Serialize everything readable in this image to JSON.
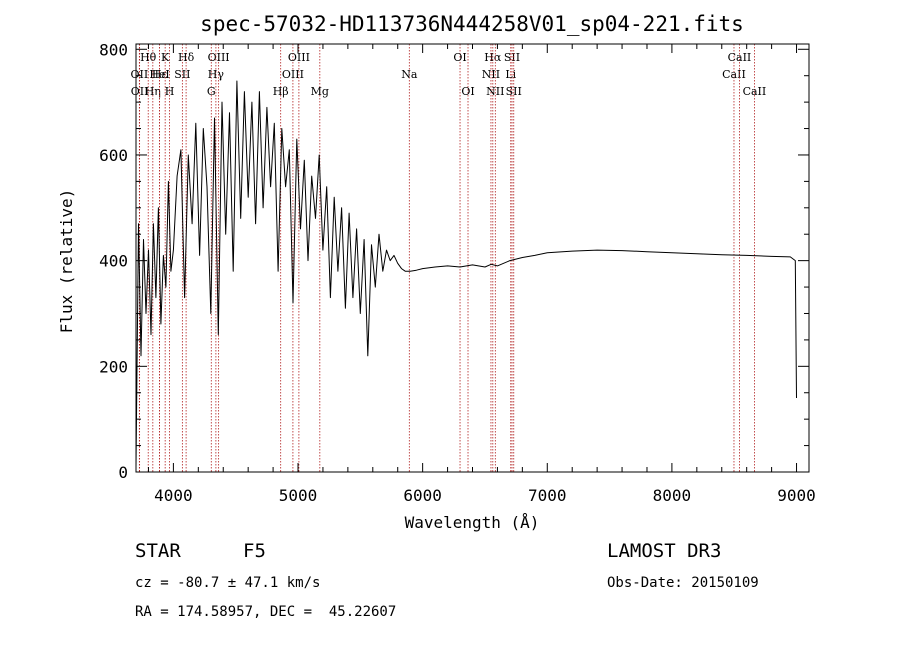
{
  "chart_data": {
    "type": "line",
    "title": "spec-57032-HD113736N444258V01_sp04-221.fits",
    "xlabel": "Wavelength (Å)",
    "ylabel": "Flux (relative)",
    "xlim": [
      3700,
      9100
    ],
    "ylim": [
      0,
      810
    ],
    "xticks": [
      4000,
      5000,
      6000,
      7000,
      8000,
      9000
    ],
    "yticks": [
      0,
      200,
      400,
      600,
      800
    ],
    "series": [
      {
        "name": "flux",
        "x": [
          3700,
          3720,
          3740,
          3760,
          3780,
          3800,
          3820,
          3840,
          3860,
          3880,
          3900,
          3920,
          3940,
          3960,
          3980,
          4000,
          4030,
          4060,
          4090,
          4120,
          4150,
          4180,
          4210,
          4240,
          4270,
          4300,
          4330,
          4360,
          4390,
          4420,
          4450,
          4480,
          4510,
          4540,
          4570,
          4600,
          4630,
          4660,
          4690,
          4720,
          4750,
          4780,
          4810,
          4840,
          4870,
          4900,
          4930,
          4960,
          4990,
          5020,
          5050,
          5080,
          5110,
          5140,
          5170,
          5200,
          5230,
          5260,
          5290,
          5320,
          5350,
          5380,
          5410,
          5440,
          5470,
          5500,
          5530,
          5560,
          5590,
          5620,
          5650,
          5680,
          5710,
          5740,
          5770,
          5800,
          5830,
          5860,
          5900,
          5950,
          6000,
          6100,
          6200,
          6300,
          6400,
          6500,
          6550,
          6600,
          6700,
          6800,
          6900,
          7000,
          7200,
          7400,
          7600,
          7800,
          8000,
          8200,
          8400,
          8600,
          8800,
          8950,
          8990,
          9000
        ],
        "y": [
          10,
          470,
          220,
          440,
          300,
          420,
          260,
          470,
          330,
          500,
          280,
          410,
          350,
          550,
          380,
          420,
          560,
          610,
          330,
          600,
          470,
          660,
          410,
          650,
          540,
          300,
          670,
          260,
          700,
          450,
          680,
          380,
          740,
          480,
          720,
          520,
          700,
          470,
          720,
          500,
          690,
          540,
          660,
          380,
          650,
          540,
          610,
          320,
          630,
          460,
          590,
          400,
          560,
          480,
          600,
          420,
          540,
          330,
          520,
          380,
          500,
          310,
          490,
          330,
          460,
          300,
          440,
          220,
          430,
          350,
          450,
          380,
          420,
          400,
          410,
          395,
          385,
          380,
          380,
          382,
          385,
          388,
          390,
          388,
          392,
          388,
          393,
          390,
          400,
          406,
          410,
          415,
          418,
          420,
          419,
          417,
          415,
          413,
          411,
          410,
          408,
          407,
          400,
          140
        ]
      }
    ],
    "lines": [
      {
        "label": "Hθ",
        "wl": 3798,
        "row": 0
      },
      {
        "label": "OII",
        "wl": 3727,
        "row": 1
      },
      {
        "label": "OII",
        "wl": 3729,
        "row": 2
      },
      {
        "label": "Hη",
        "wl": 3835,
        "row": 2
      },
      {
        "label": "Hε",
        "wl": 3889,
        "row": 1
      },
      {
        "label": "K",
        "wl": 3934,
        "row": 0
      },
      {
        "label": "H",
        "wl": 3969,
        "row": 2
      },
      {
        "label": "HeI",
        "wl": 3889,
        "row": 1
      },
      {
        "label": "SII",
        "wl": 4072,
        "row": 1
      },
      {
        "label": "Hδ",
        "wl": 4102,
        "row": 0
      },
      {
        "label": "OIII",
        "wl": 4363,
        "row": 0
      },
      {
        "label": "Hγ",
        "wl": 4341,
        "row": 1
      },
      {
        "label": "G",
        "wl": 4304,
        "row": 2
      },
      {
        "label": "Hβ",
        "wl": 4861,
        "row": 2
      },
      {
        "label": "OIII",
        "wl": 4959,
        "row": 1
      },
      {
        "label": "OIII",
        "wl": 5007,
        "row": 0
      },
      {
        "label": "Mg",
        "wl": 5175,
        "row": 2
      },
      {
        "label": "Na",
        "wl": 5893,
        "row": 1
      },
      {
        "label": "OI",
        "wl": 6300,
        "row": 0
      },
      {
        "label": "OI",
        "wl": 6364,
        "row": 2
      },
      {
        "label": "Hα",
        "wl": 6563,
        "row": 0
      },
      {
        "label": "NII",
        "wl": 6548,
        "row": 1
      },
      {
        "label": "NII",
        "wl": 6583,
        "row": 2
      },
      {
        "label": "SII",
        "wl": 6717,
        "row": 0
      },
      {
        "label": "Li",
        "wl": 6707,
        "row": 1
      },
      {
        "label": "SII",
        "wl": 6731,
        "row": 2
      },
      {
        "label": "CaII",
        "wl": 8498,
        "row": 1
      },
      {
        "label": "CaII",
        "wl": 8542,
        "row": 0
      },
      {
        "label": "CaII",
        "wl": 8662,
        "row": 2
      }
    ],
    "colors": {
      "spectrum": "#000000",
      "lines": "#b22222",
      "axes": "#000000"
    }
  },
  "info": {
    "class": "STAR",
    "subclass": "F5",
    "cz": "cz = -80.7 ± 47.1 km/s",
    "radec": "RA = 174.58957, DEC =  45.22607",
    "survey": "LAMOST DR3",
    "obsdate": "Obs-Date: 20150109"
  }
}
